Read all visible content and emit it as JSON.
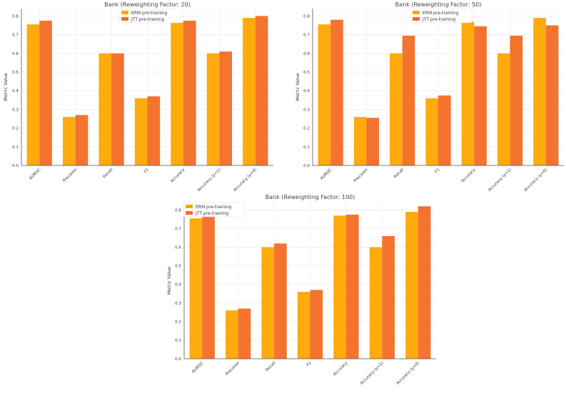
{
  "colors": {
    "erm": "#FFA500",
    "jtt": "#F26B24"
  },
  "chart_data": [
    {
      "type": "bar",
      "title": "Bank (Reweighting Factor: 20)",
      "xlabel": "",
      "ylabel": "Metric Value",
      "ylim": [
        0,
        0.84
      ],
      "yticks": [
        "0.0",
        "0.1",
        "0.2",
        "0.3",
        "0.4",
        "0.5",
        "0.6",
        "0.7",
        "0.8"
      ],
      "grid": true,
      "legend_position": "top-center",
      "categories": [
        "AUROC",
        "Precision",
        "Recall",
        "F1",
        "Accuracy",
        "Accuracy (y=1)",
        "Accuracy (y=0)"
      ],
      "series": [
        {
          "name": "ERM pre-training",
          "values": [
            0.755,
            0.26,
            0.6,
            0.36,
            0.765,
            0.6,
            0.79
          ]
        },
        {
          "name": "JTT pre-training",
          "values": [
            0.775,
            0.27,
            0.6,
            0.37,
            0.775,
            0.61,
            0.8
          ]
        }
      ]
    },
    {
      "type": "bar",
      "title": "Bank (Reweighting Factor: 50)",
      "xlabel": "",
      "ylabel": "Metric Value",
      "ylim": [
        0,
        0.84
      ],
      "yticks": [
        "0.0",
        "0.1",
        "0.2",
        "0.3",
        "0.4",
        "0.5",
        "0.6",
        "0.7",
        "0.8"
      ],
      "grid": true,
      "legend_position": "top-center",
      "categories": [
        "AUROC",
        "Precision",
        "Recall",
        "F1",
        "Accuracy",
        "Accuracy (y=1)",
        "Accuracy (y=0)"
      ],
      "series": [
        {
          "name": "ERM pre-training",
          "values": [
            0.755,
            0.26,
            0.6,
            0.36,
            0.77,
            0.6,
            0.79
          ]
        },
        {
          "name": "JTT pre-training",
          "values": [
            0.78,
            0.255,
            0.695,
            0.375,
            0.745,
            0.695,
            0.75
          ]
        }
      ]
    },
    {
      "type": "bar",
      "title": "Bank (Reweighting Factor: 100)",
      "xlabel": "",
      "ylabel": "Metric Value",
      "ylim": [
        0,
        0.84
      ],
      "yticks": [
        "0.0",
        "0.1",
        "0.2",
        "0.3",
        "0.4",
        "0.5",
        "0.6",
        "0.7",
        "0.8"
      ],
      "grid": true,
      "legend_position": "top-left",
      "categories": [
        "AUROC",
        "Precision",
        "Recall",
        "F1",
        "Accuracy",
        "Accuracy (y=1)",
        "Accuracy (y=0)"
      ],
      "series": [
        {
          "name": "ERM pre-training",
          "values": [
            0.755,
            0.26,
            0.6,
            0.36,
            0.77,
            0.6,
            0.79
          ]
        },
        {
          "name": "JTT pre-training",
          "values": [
            0.77,
            0.27,
            0.62,
            0.37,
            0.775,
            0.66,
            0.82
          ]
        }
      ]
    }
  ]
}
